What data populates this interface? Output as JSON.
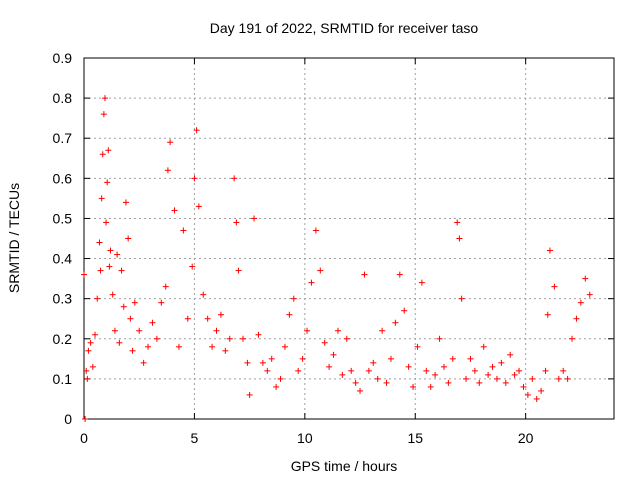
{
  "chart_data": {
    "type": "scatter",
    "title": "Day 191 of 2022, SRMTID for receiver taso",
    "xlabel": "GPS time / hours",
    "ylabel": "SRMTID / TECUs",
    "xlim": [
      0,
      24
    ],
    "ylim": [
      0,
      0.9
    ],
    "xticks": [
      0,
      5,
      10,
      15,
      20
    ],
    "xtick_labels": [
      "0",
      "5",
      "10",
      "15",
      "20"
    ],
    "yticks": [
      0,
      0.1,
      0.2,
      0.3,
      0.4,
      0.5,
      0.6,
      0.7,
      0.8,
      0.9
    ],
    "ytick_labels": [
      "0",
      "0.1",
      "0.2",
      "0.3",
      "0.4",
      "0.5",
      "0.6",
      "0.7",
      "0.8",
      "0.9"
    ],
    "grid": true,
    "marker": "+",
    "marker_color": "#ff0000",
    "series": [
      {
        "name": "SRMTID",
        "x": [
          0.0,
          0.05,
          0.1,
          0.15,
          0.2,
          0.3,
          0.4,
          0.5,
          0.6,
          0.7,
          0.75,
          0.8,
          0.85,
          0.9,
          0.95,
          1.0,
          1.05,
          1.1,
          1.15,
          1.2,
          1.3,
          1.4,
          1.5,
          1.6,
          1.7,
          1.8,
          1.9,
          2.0,
          2.1,
          2.2,
          2.3,
          2.5,
          2.7,
          2.9,
          3.1,
          3.3,
          3.5,
          3.7,
          3.8,
          3.9,
          4.1,
          4.3,
          4.5,
          4.7,
          4.9,
          5.0,
          5.1,
          5.2,
          5.4,
          5.6,
          5.8,
          6.0,
          6.2,
          6.4,
          6.6,
          6.8,
          6.9,
          7.0,
          7.2,
          7.4,
          7.5,
          7.7,
          7.9,
          8.1,
          8.3,
          8.5,
          8.7,
          8.9,
          9.1,
          9.3,
          9.5,
          9.7,
          9.9,
          10.1,
          10.3,
          10.5,
          10.7,
          10.9,
          11.1,
          11.3,
          11.5,
          11.7,
          11.9,
          12.1,
          12.3,
          12.5,
          12.7,
          12.9,
          13.1,
          13.3,
          13.5,
          13.7,
          13.9,
          14.1,
          14.3,
          14.5,
          14.7,
          14.9,
          15.1,
          15.3,
          15.5,
          15.7,
          15.9,
          16.1,
          16.3,
          16.5,
          16.7,
          16.9,
          17.0,
          17.1,
          17.3,
          17.5,
          17.7,
          17.9,
          18.1,
          18.3,
          18.5,
          18.7,
          18.9,
          19.1,
          19.3,
          19.5,
          19.7,
          19.9,
          20.1,
          20.3,
          20.5,
          20.7,
          20.9,
          21.0,
          21.1,
          21.3,
          21.5,
          21.7,
          21.9,
          22.1,
          22.3,
          22.5,
          22.7,
          22.9
        ],
        "y": [
          0.36,
          0.0,
          0.12,
          0.1,
          0.17,
          0.19,
          0.13,
          0.21,
          0.3,
          0.44,
          0.37,
          0.55,
          0.66,
          0.76,
          0.8,
          0.49,
          0.59,
          0.67,
          0.38,
          0.42,
          0.31,
          0.22,
          0.41,
          0.19,
          0.37,
          0.28,
          0.54,
          0.45,
          0.25,
          0.17,
          0.29,
          0.22,
          0.14,
          0.18,
          0.24,
          0.2,
          0.29,
          0.33,
          0.62,
          0.69,
          0.52,
          0.18,
          0.47,
          0.25,
          0.38,
          0.6,
          0.72,
          0.53,
          0.31,
          0.25,
          0.18,
          0.22,
          0.26,
          0.17,
          0.2,
          0.6,
          0.49,
          0.37,
          0.2,
          0.14,
          0.06,
          0.5,
          0.21,
          0.14,
          0.12,
          0.15,
          0.08,
          0.1,
          0.18,
          0.26,
          0.3,
          0.12,
          0.15,
          0.22,
          0.34,
          0.47,
          0.37,
          0.19,
          0.13,
          0.16,
          0.22,
          0.11,
          0.2,
          0.12,
          0.09,
          0.07,
          0.36,
          0.12,
          0.14,
          0.1,
          0.22,
          0.09,
          0.15,
          0.24,
          0.36,
          0.27,
          0.13,
          0.08,
          0.18,
          0.34,
          0.12,
          0.08,
          0.11,
          0.2,
          0.13,
          0.09,
          0.15,
          0.49,
          0.45,
          0.3,
          0.1,
          0.15,
          0.12,
          0.09,
          0.18,
          0.11,
          0.13,
          0.1,
          0.14,
          0.09,
          0.16,
          0.11,
          0.12,
          0.08,
          0.06,
          0.1,
          0.05,
          0.07,
          0.12,
          0.26,
          0.42,
          0.33,
          0.1,
          0.12,
          0.1,
          0.2,
          0.25,
          0.29,
          0.35,
          0.31
        ]
      }
    ]
  }
}
